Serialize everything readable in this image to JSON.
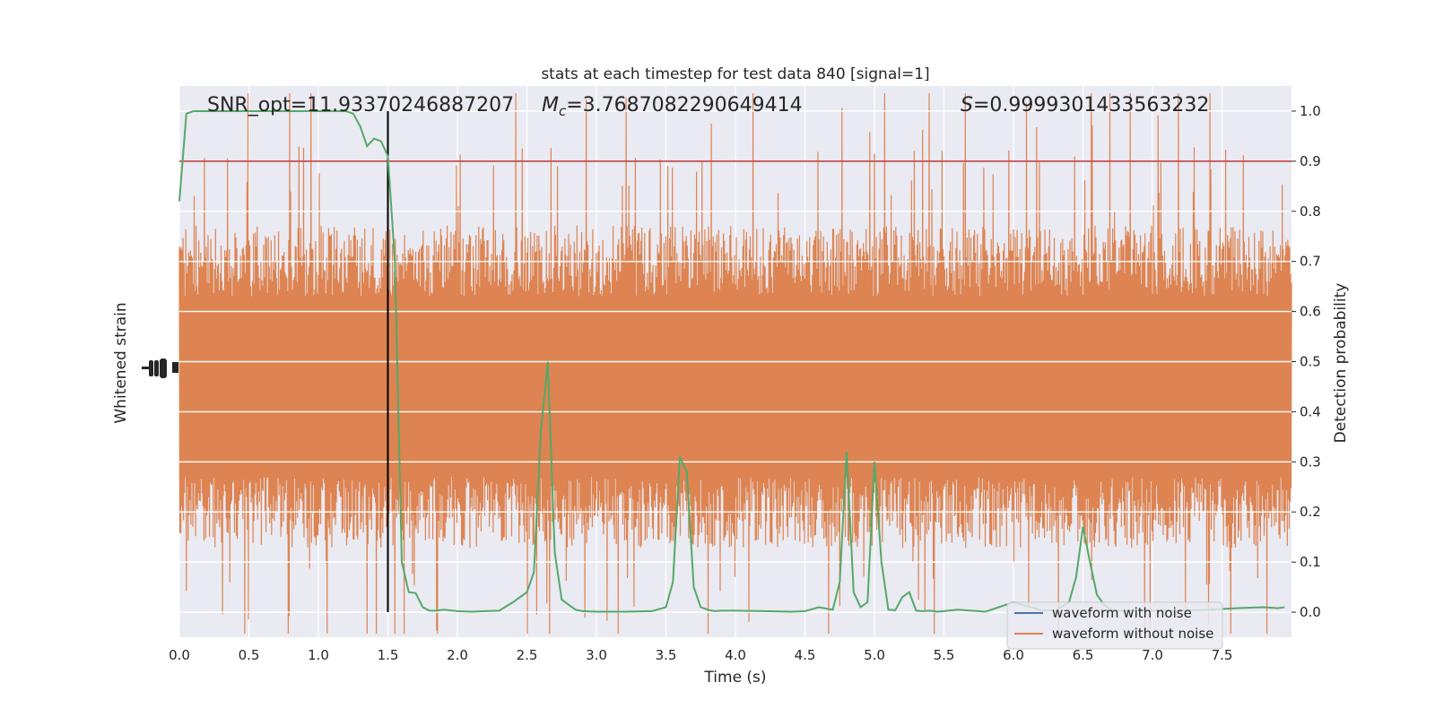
{
  "chart_data": {
    "type": "line",
    "title": "stats at each timestep for test data 840 [signal=1]",
    "xlabel": "Time (s)",
    "ylabel_left": "Whitened strain",
    "ylabel_right": "Detection probability",
    "xlim": [
      0,
      8
    ],
    "ylim_right": [
      -0.05,
      1.05
    ],
    "x_ticks": [
      "0.0",
      "0.5",
      "1.0",
      "1.5",
      "2.0",
      "2.5",
      "3.0",
      "3.5",
      "4.0",
      "4.5",
      "5.0",
      "5.5",
      "6.0",
      "6.5",
      "7.0",
      "7.5"
    ],
    "y_ticks_right": [
      "0.0",
      "0.1",
      "0.2",
      "0.3",
      "0.4",
      "0.5",
      "0.6",
      "0.7",
      "0.8",
      "0.9",
      "1.0"
    ],
    "grid": true,
    "legend_position": "lower-right",
    "annotations": {
      "snr": "SNR_opt=11.93370246887207",
      "mc_prefix": "M",
      "mc_sub": "c",
      "mc_value": "=3.7687082290649414",
      "s_prefix": "S",
      "s_value": "=0.9999301433563232"
    },
    "threshold": 0.9,
    "marker_time": 1.5,
    "series": [
      {
        "name": "waveform with noise",
        "color": "#4c72b0"
      },
      {
        "name": "waveform without noise",
        "color": "#dd8452"
      },
      {
        "color": "#55a868",
        "x": [
          0.0,
          0.05,
          0.1,
          0.2,
          0.3,
          0.4,
          0.5,
          0.6,
          0.7,
          0.8,
          0.9,
          1.0,
          1.1,
          1.2,
          1.25,
          1.3,
          1.35,
          1.4,
          1.45,
          1.5,
          1.55,
          1.6,
          1.65,
          1.7,
          1.75,
          1.8,
          1.85,
          1.9,
          2.0,
          2.1,
          2.2,
          2.3,
          2.4,
          2.5,
          2.55,
          2.6,
          2.65,
          2.7,
          2.75,
          2.8,
          2.85,
          2.9,
          3.0,
          3.2,
          3.4,
          3.5,
          3.55,
          3.6,
          3.65,
          3.7,
          3.75,
          3.8,
          3.85,
          3.9,
          4.0,
          4.2,
          4.4,
          4.5,
          4.6,
          4.7,
          4.75,
          4.8,
          4.85,
          4.9,
          4.95,
          5.0,
          5.05,
          5.1,
          5.15,
          5.2,
          5.25,
          5.3,
          5.35,
          5.4,
          5.45,
          5.5,
          5.6,
          5.8,
          6.0,
          6.1,
          6.2,
          6.3,
          6.4,
          6.45,
          6.5,
          6.55,
          6.6,
          6.65,
          6.7,
          6.75,
          6.8,
          6.9,
          7.0,
          7.2,
          7.4,
          7.6,
          7.8,
          7.9,
          7.95
        ],
        "y": [
          0.82,
          0.995,
          1.0,
          1.0,
          1.0,
          1.0,
          1.0,
          1.0,
          1.0,
          1.0,
          1.0,
          1.0,
          1.0,
          1.0,
          0.995,
          0.97,
          0.93,
          0.945,
          0.94,
          0.91,
          0.7,
          0.1,
          0.04,
          0.038,
          0.01,
          0.003,
          0.003,
          0.005,
          0.002,
          0.001,
          0.002,
          0.003,
          0.02,
          0.04,
          0.08,
          0.36,
          0.5,
          0.12,
          0.025,
          0.015,
          0.005,
          0.002,
          0.001,
          0.001,
          0.002,
          0.01,
          0.06,
          0.31,
          0.28,
          0.05,
          0.01,
          0.005,
          0.002,
          0.003,
          0.003,
          0.002,
          0.001,
          0.002,
          0.01,
          0.005,
          0.06,
          0.32,
          0.04,
          0.01,
          0.02,
          0.3,
          0.1,
          0.005,
          0.004,
          0.03,
          0.04,
          0.003,
          0.002,
          0.003,
          0.001,
          0.002,
          0.005,
          0.001,
          0.02,
          0.012,
          0.004,
          0.003,
          0.02,
          0.07,
          0.17,
          0.1,
          0.035,
          0.015,
          0.005,
          0.002,
          0.003,
          0.005,
          0.003,
          0.003,
          0.005,
          0.008,
          0.01,
          0.008,
          0.01
        ]
      }
    ]
  }
}
